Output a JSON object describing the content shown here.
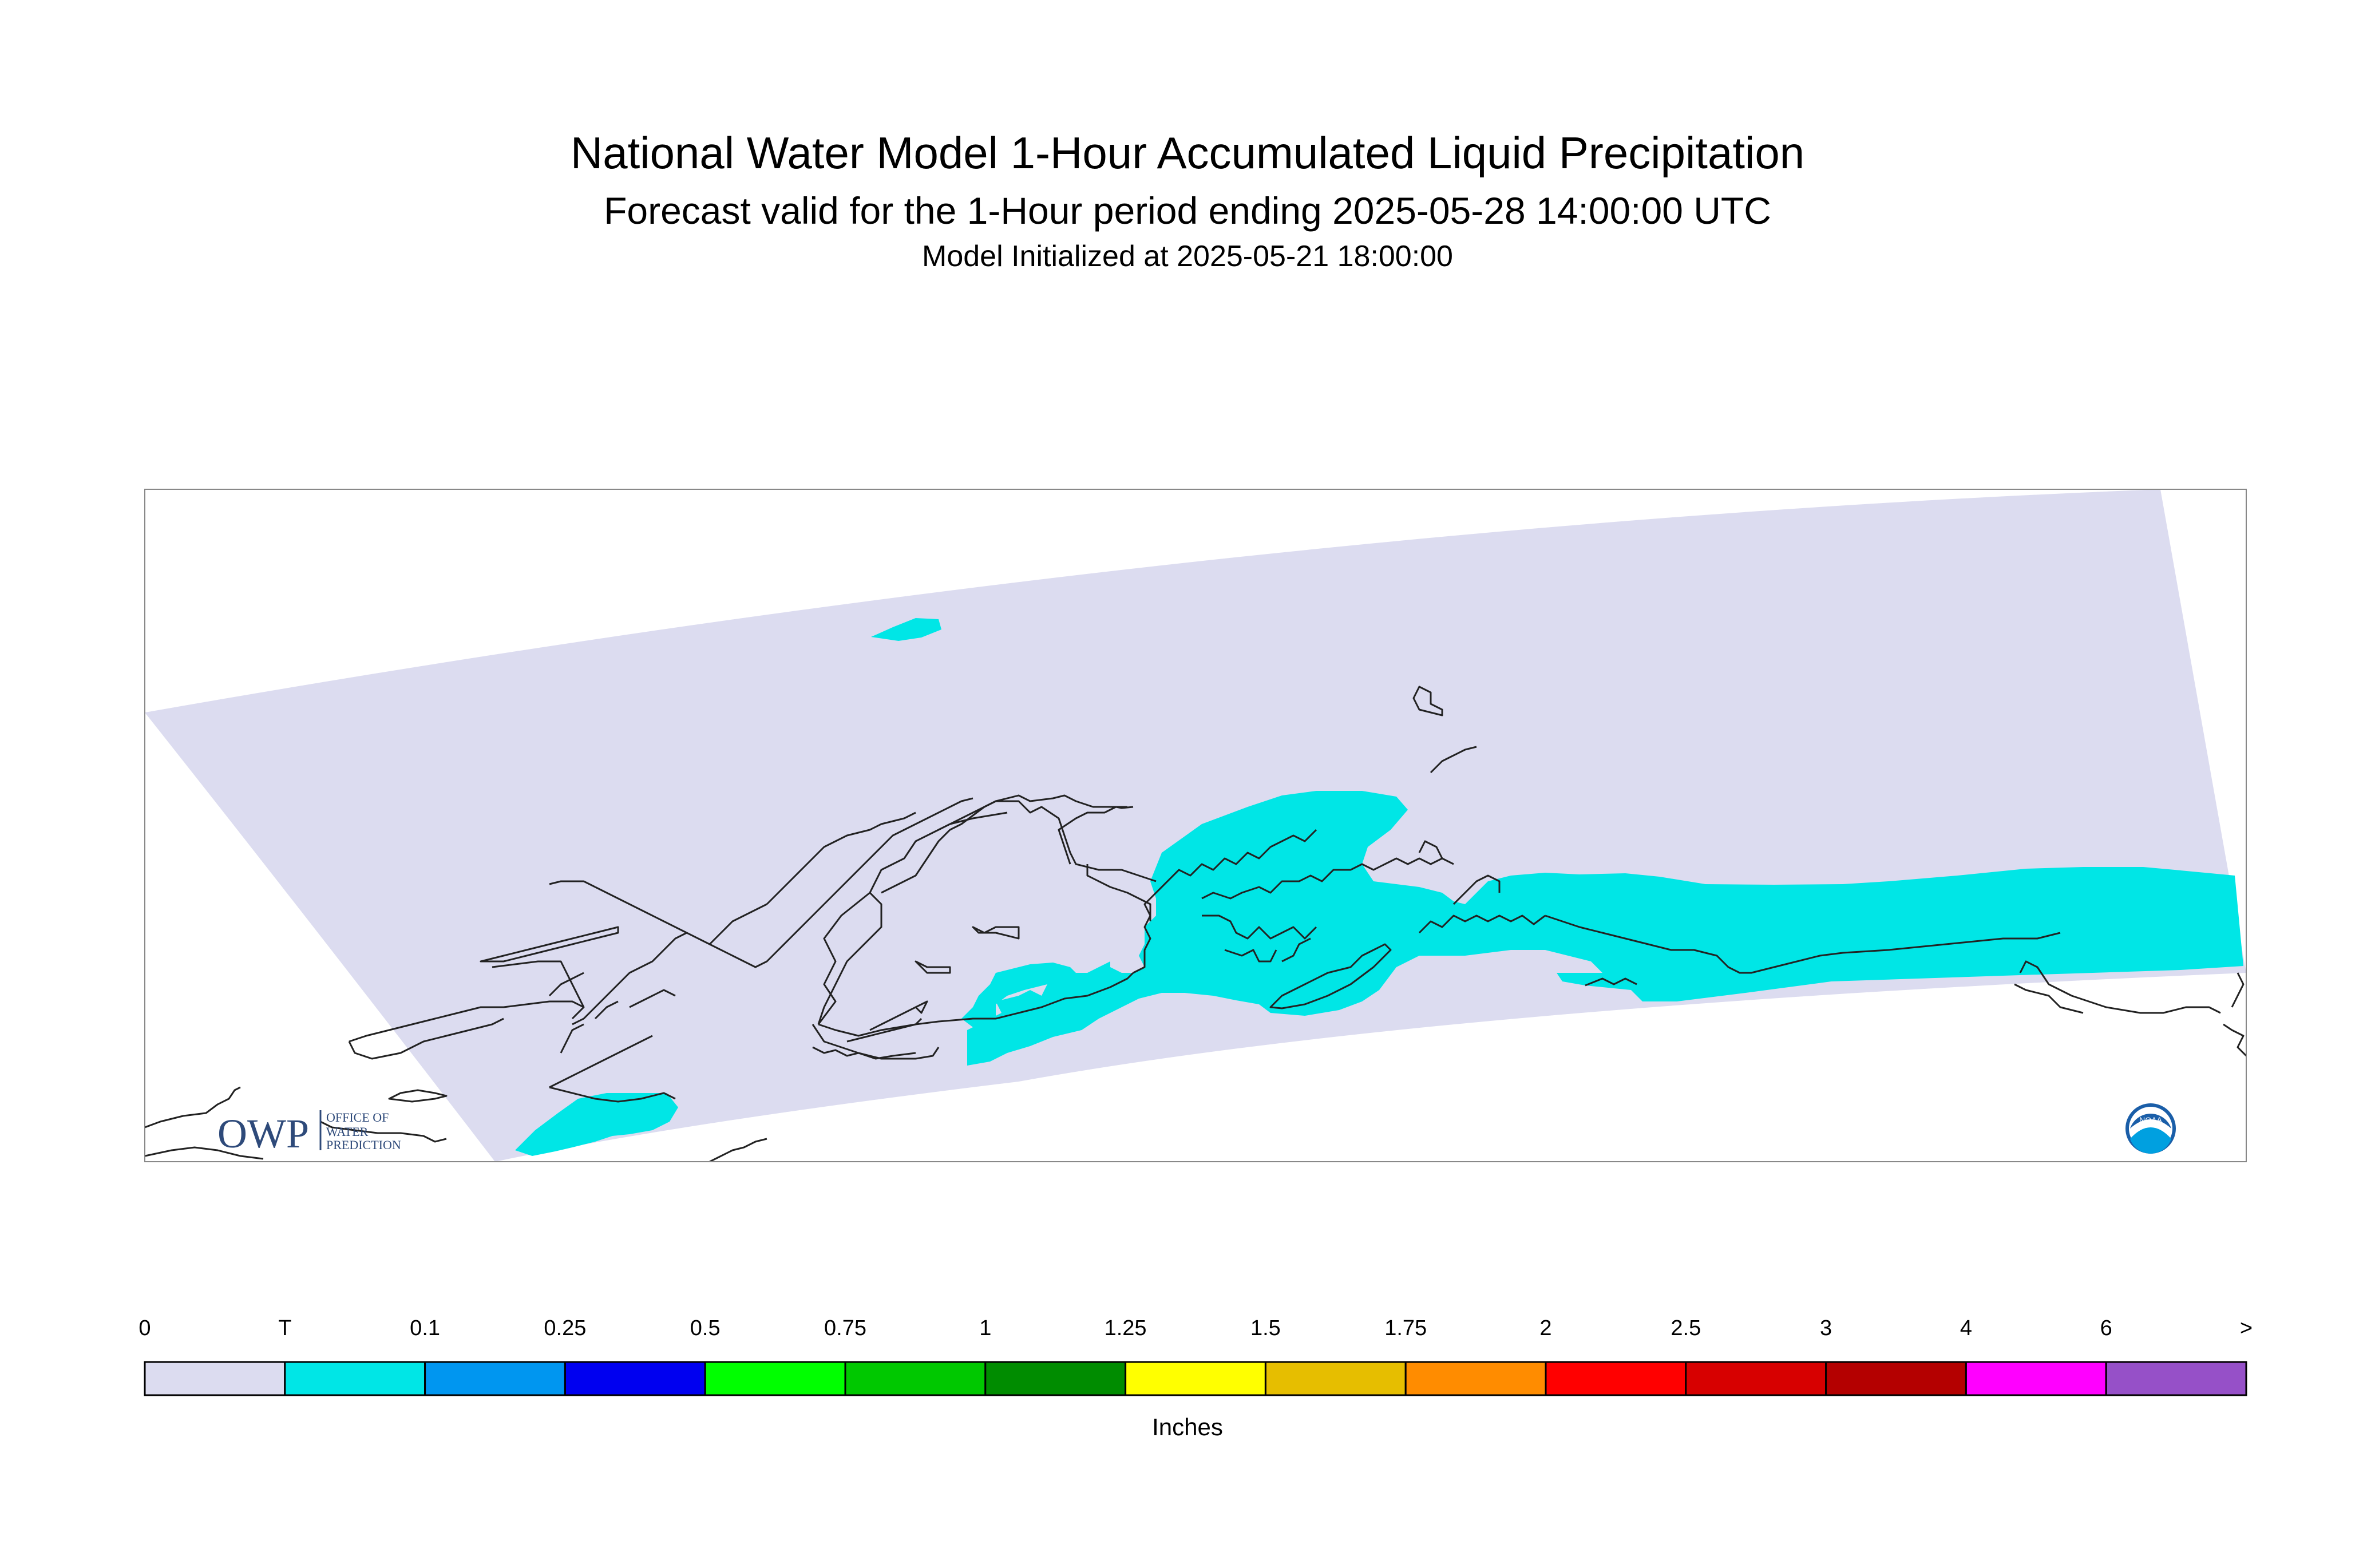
{
  "header": {
    "title": "National Water Model 1-Hour Accumulated Liquid Precipitation",
    "subtitle": "Forecast valid for the 1-Hour period ending 2025-05-28 14:00:00 UTC",
    "init": "Model Initialized at 2025-05-21 18:00:00"
  },
  "legend": {
    "units": "Inches",
    "labels": [
      "0",
      "T",
      "0.1",
      "0.25",
      "0.5",
      "0.75",
      "1",
      "1.25",
      "1.5",
      "1.75",
      "2",
      "2.5",
      "3",
      "4",
      "6",
      ">"
    ],
    "colors": [
      "#dcdcf0",
      "#00e6e6",
      "#0096f0",
      "#0000f0",
      "#00ff00",
      "#00c800",
      "#008c00",
      "#ffff00",
      "#e6be00",
      "#ff8c00",
      "#ff0000",
      "#d70000",
      "#b40000",
      "#ff00ff",
      "#9650c8"
    ]
  },
  "logos": {
    "owp_letters": "OWP",
    "owp_text": [
      "OFFICE OF",
      "WATER",
      "PREDICTION"
    ],
    "noaa_text": "NOAA"
  },
  "colors": {
    "domain": "#dcdcf0",
    "precip_trace": "#00e6e6",
    "coastline": "#222222"
  }
}
